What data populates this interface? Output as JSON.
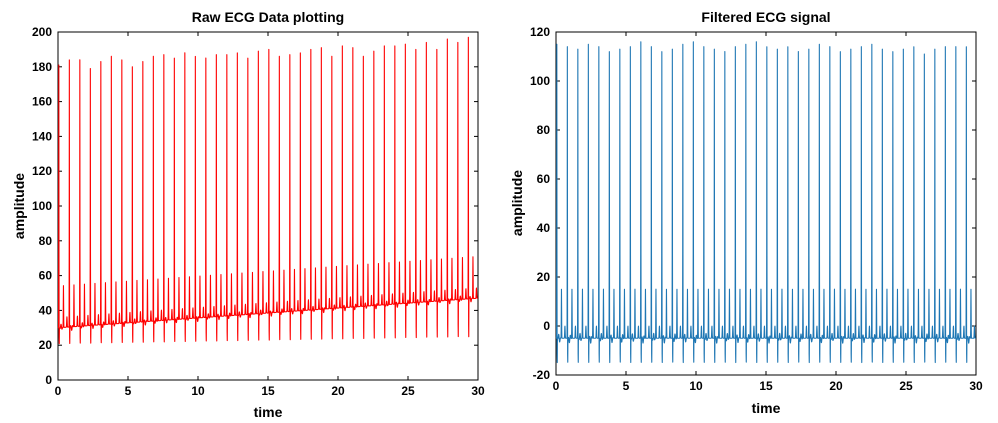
{
  "chart_data": [
    {
      "type": "line",
      "title": "Raw ECG Data plotting",
      "xlabel": "time",
      "ylabel": "amplitude",
      "xlim": [
        0,
        30
      ],
      "ylim": [
        0,
        200
      ],
      "x_ticks": [
        "0",
        "5",
        "10",
        "15",
        "20",
        "25",
        "30"
      ],
      "y_ticks": [
        "0",
        "20",
        "40",
        "60",
        "80",
        "100",
        "120",
        "140",
        "160",
        "180",
        "200"
      ],
      "grid": false,
      "color": "#ff0000",
      "signal": {
        "beats": 40,
        "peak_values": [
          181,
          184,
          184,
          179,
          183,
          186,
          184,
          180,
          183,
          186,
          187,
          185,
          188,
          186,
          185,
          187,
          187,
          188,
          185,
          189,
          190,
          186,
          187,
          188,
          190,
          191,
          186,
          192,
          191,
          186,
          189,
          192,
          192,
          193,
          190,
          194,
          190,
          196,
          194,
          197
        ],
        "baseline_start": 30,
        "baseline_end": 47,
        "secondary_wave_height": 24,
        "trough": 18
      }
    },
    {
      "type": "line",
      "title": "Filtered ECG signal",
      "xlabel": "time",
      "ylabel": "amplitude",
      "xlim": [
        0,
        30
      ],
      "ylim": [
        -20,
        120
      ],
      "x_ticks": [
        "0",
        "5",
        "10",
        "15",
        "20",
        "25",
        "30"
      ],
      "y_ticks": [
        "-20",
        "0",
        "20",
        "40",
        "60",
        "80",
        "100",
        "120"
      ],
      "grid": false,
      "color": "#1f77b4",
      "signal": {
        "beats": 40,
        "peak_values": [
          115,
          114,
          113,
          115,
          114,
          112,
          113,
          114,
          116,
          114,
          112,
          113,
          115,
          116,
          114,
          113,
          112,
          114,
          115,
          116,
          114,
          113,
          114,
          112,
          113,
          115,
          114,
          112,
          113,
          114,
          115,
          113,
          112,
          113,
          114,
          111,
          113,
          114,
          114,
          114
        ],
        "baseline_start": -5,
        "baseline_end": -5,
        "secondary_wave_height": 20,
        "trough": -18
      }
    }
  ]
}
